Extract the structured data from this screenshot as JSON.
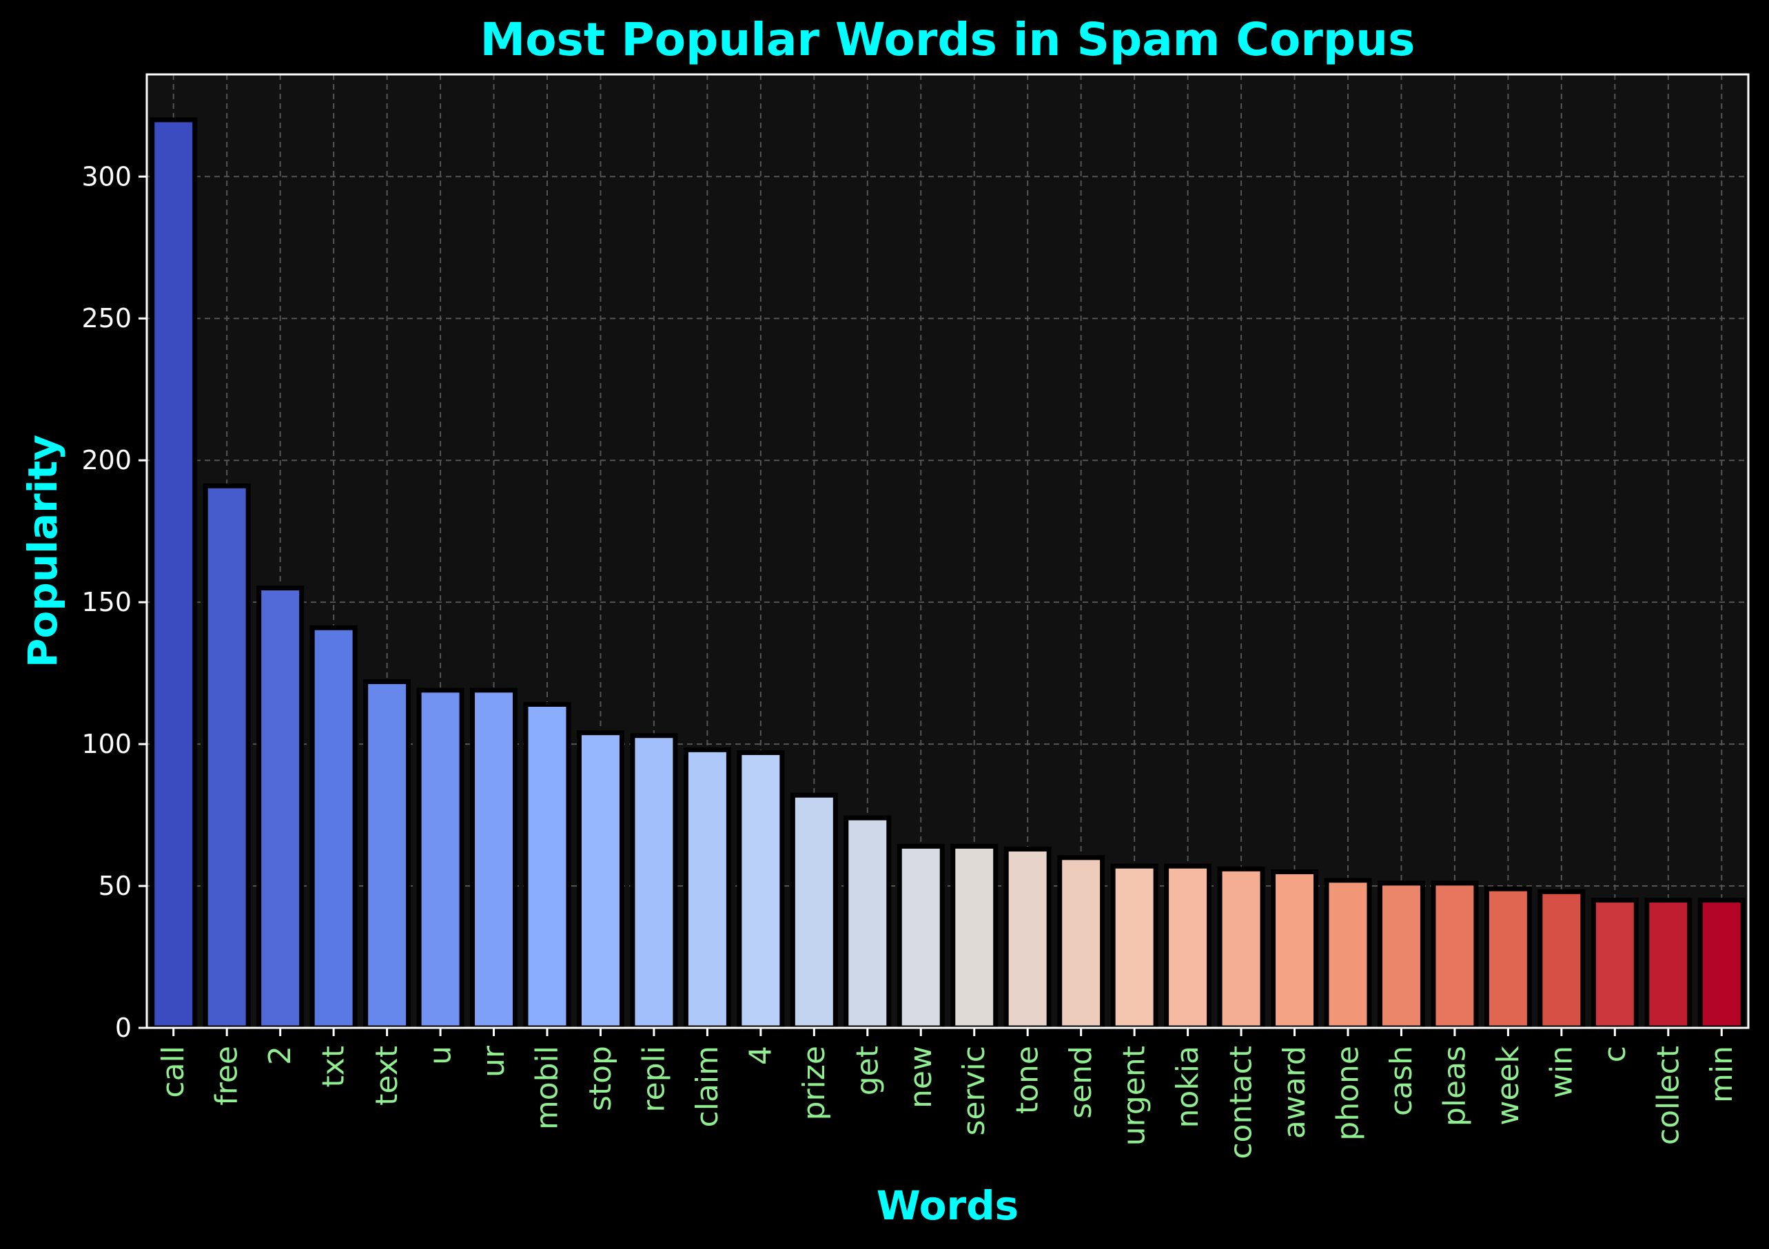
{
  "chart_data": {
    "type": "bar",
    "title": "Most Popular Words in Spam Corpus",
    "xlabel": "Words",
    "ylabel": "Popularity",
    "categories": [
      "call",
      "free",
      "2",
      "txt",
      "text",
      "u",
      "ur",
      "mobil",
      "stop",
      "repli",
      "claim",
      "4",
      "prize",
      "get",
      "new",
      "servic",
      "tone",
      "send",
      "urgent",
      "nokia",
      "contact",
      "award",
      "phone",
      "cash",
      "pleas",
      "week",
      "win",
      "c",
      "collect",
      "min"
    ],
    "values": [
      320,
      191,
      155,
      141,
      122,
      119,
      119,
      114,
      104,
      103,
      98,
      97,
      82,
      74,
      64,
      64,
      63,
      60,
      57,
      57,
      56,
      55,
      52,
      51,
      51,
      49,
      48,
      45,
      45,
      45
    ],
    "ylim": [
      0,
      336
    ],
    "yticks": [
      0,
      50,
      100,
      150,
      200,
      250,
      300
    ],
    "grid": true,
    "legend": "none",
    "palette": "coolwarm"
  },
  "colors": {
    "background": "#000000",
    "plot_background": "#111111",
    "title": "#00FFFF",
    "axis_label": "#00FFFF",
    "xtick_label": "#90EE90",
    "ytick_label": "#FFFFFF",
    "axes": "#FFFFFF",
    "grid": "#555555",
    "bar_edge": "#000000"
  }
}
